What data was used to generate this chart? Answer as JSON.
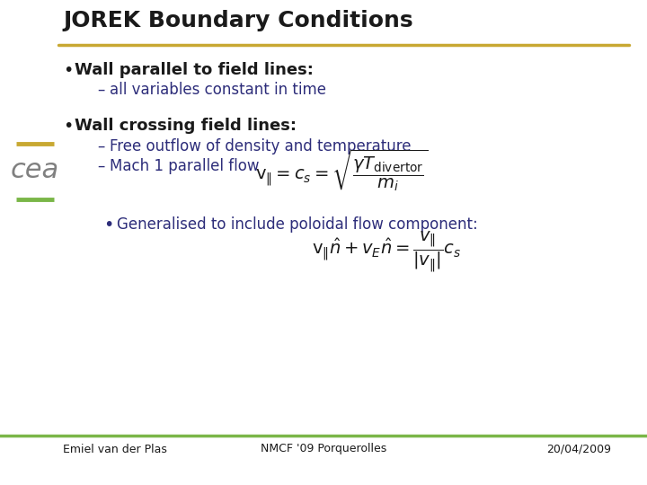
{
  "title": "JOREK Boundary Conditions",
  "title_color": "#1a1a1a",
  "title_fontsize": 18,
  "background_color": "#f0f0f0",
  "slide_bg": "#ffffff",
  "gold_line_color": "#c8a832",
  "green_line_color": "#7ab648",
  "bullet_color": "#2d2d7a",
  "text_dark": "#1a1a1a",
  "footer_left": "Emiel van der Plas",
  "footer_center": "NMCF '09 Porquerolles",
  "footer_right": "20/04/2009",
  "bullet1": "Wall parallel to field lines:",
  "sub1": "all variables constant in time",
  "bullet2": "Wall crossing field lines:",
  "sub2a": "Free outflow of density and temperature",
  "sub2b": "Mach 1 parallel flow",
  "bullet3_prefix": "Generalised to include poloidal flow component:",
  "formula_mach": "$v_{\\|} = c_s = \\sqrt{\\dfrac{\\gamma T_{\\mathrm{divertor}}}{m_i}}$",
  "formula_gen": "$v_{\\|} \\hat{n} + v_E \\hat{n} = \\dfrac{v_{\\|}}{|v_{\\|}|} c_s$"
}
